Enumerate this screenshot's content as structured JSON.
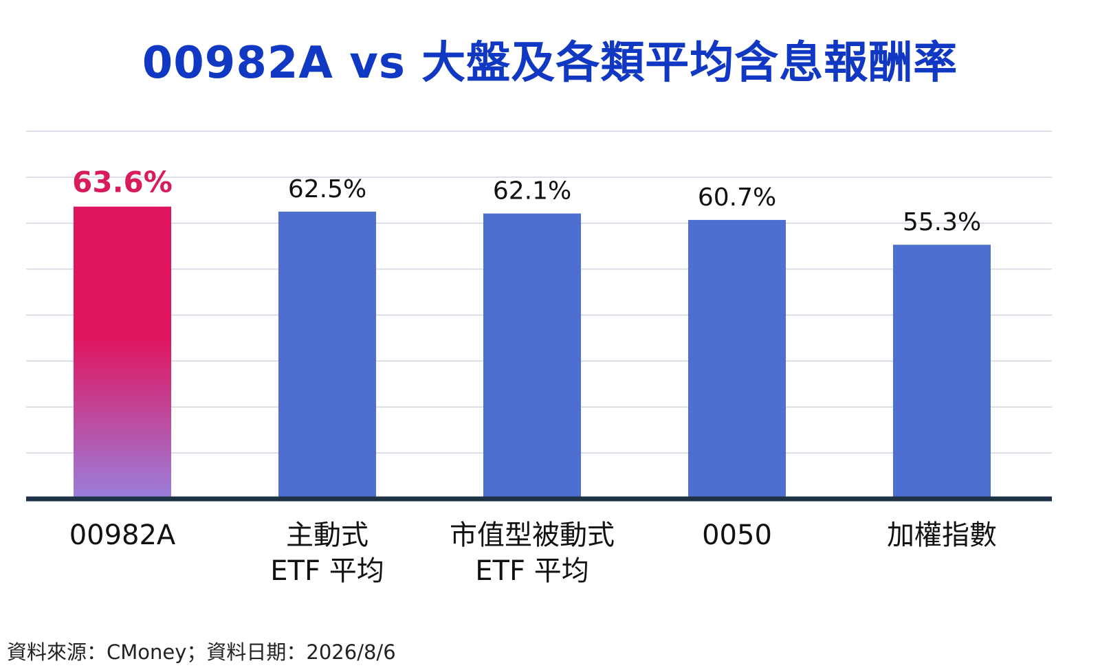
{
  "title": "00982A vs 大盤及各類平均含息報酬率",
  "source": "資料來源：CMoney；資料日期：2026/8/6",
  "colors": {
    "title": "#1038c2",
    "highlight_bar_top": "#e0155f",
    "highlight_bar_bottom": "#9a7fdc",
    "highlight_label": "#d81b5a",
    "bar": "#4f6fd0",
    "grid": "#cfd6e0",
    "baseline": "#1e3246"
  },
  "chart_data": {
    "type": "bar",
    "categories": [
      [
        "00982A"
      ],
      [
        "主動式",
        "ETF 平均"
      ],
      [
        "市值型被動式",
        "ETF 平均"
      ],
      [
        "0050"
      ],
      [
        "加權指數"
      ]
    ],
    "values": [
      63.6,
      62.5,
      62.1,
      60.7,
      55.3
    ],
    "data_labels": [
      "63.6%",
      "62.5%",
      "62.1%",
      "60.7%",
      "55.3%"
    ],
    "highlight_index": 0,
    "ylim": [
      0,
      80
    ],
    "grid": true
  }
}
